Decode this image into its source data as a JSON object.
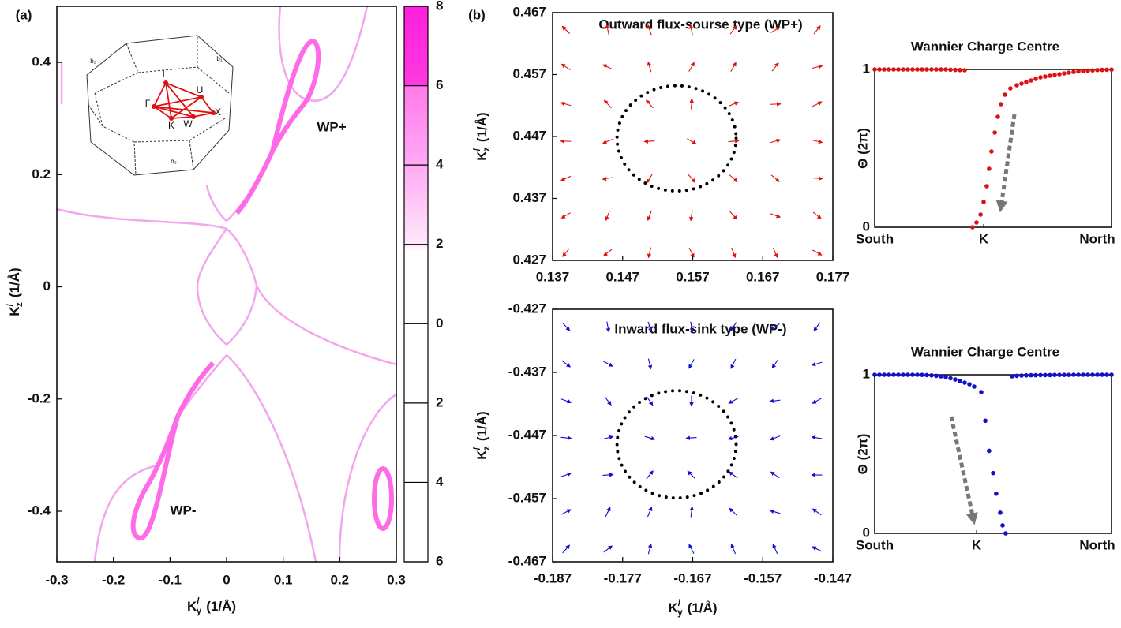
{
  "chart_data": [
    {
      "type": "band-map",
      "panel_label": "(a)",
      "annotations": [
        "WP+",
        "WP-"
      ],
      "xlabel": {
        "base": "K",
        "sup": "/",
        "sub": "y",
        "unit": "(1/Å)"
      },
      "ylabel": {
        "base": "K",
        "sup": "/",
        "sub": "z",
        "unit": "(1/Å)"
      },
      "xlim": [
        -0.3,
        0.3
      ],
      "xticks": [
        -0.3,
        -0.2,
        -0.1,
        0,
        0.1,
        0.2,
        0.3
      ],
      "ylim": [
        -0.49,
        0.5
      ],
      "yticks": [
        -0.4,
        -0.2,
        0,
        0.2,
        0.4
      ],
      "color": "#ff33dd",
      "colorbar": {
        "lim": [
          -6,
          8
        ],
        "ticks": [
          8,
          6,
          4,
          2,
          0,
          {
            "value": -2,
            "label": "2"
          },
          {
            "value": -4,
            "label": "4"
          },
          {
            "value": -6,
            "label": "6"
          }
        ]
      },
      "inset_labels": [
        "L",
        "U",
        "Γ",
        "K",
        "W",
        "X",
        "b₁",
        "b₂",
        "b₃"
      ]
    },
    {
      "type": "vector-field",
      "panel_label": "(b)",
      "title": "Outward flux-sourse type (WP+)",
      "ylabel": {
        "base": "K",
        "sup": "/",
        "sub": "z",
        "unit": "(1/Å)"
      },
      "xlim": [
        0.137,
        0.177
      ],
      "xticks": [
        0.137,
        0.147,
        0.157,
        0.167,
        0.177
      ],
      "ylim": [
        0.427,
        0.467
      ],
      "yticks": [
        0.427,
        0.437,
        0.447,
        0.457,
        0.467
      ],
      "color": "#e01010",
      "circle": {
        "center": [
          0.1547,
          0.4467
        ],
        "radius": 0.0085
      }
    },
    {
      "type": "wcc",
      "title": "Wannier Charge Centre",
      "ylabel": "Θ (2π)",
      "xlim": [
        0,
        1
      ],
      "xticks": [
        {
          "value": 0,
          "label": "South"
        },
        {
          "value": 0.46,
          "label": "K"
        },
        {
          "value": 1,
          "label": "North"
        }
      ],
      "ylim": [
        0,
        1
      ],
      "yticks": [
        0,
        1
      ],
      "color": "#dd1111",
      "x": [
        0,
        0.02,
        0.04,
        0.06,
        0.08,
        0.1,
        0.12,
        0.14,
        0.16,
        0.18,
        0.2,
        0.22,
        0.24,
        0.26,
        0.28,
        0.3,
        0.32,
        0.34,
        0.36,
        0.38,
        0.413,
        0.43,
        0.447,
        0.46,
        0.473,
        0.483,
        0.493,
        0.507,
        0.52,
        0.533,
        0.55,
        0.573,
        0.6,
        0.62,
        0.64,
        0.66,
        0.68,
        0.7,
        0.72,
        0.74,
        0.76,
        0.78,
        0.8,
        0.82,
        0.84,
        0.86,
        0.88,
        0.9,
        0.92,
        0.94,
        0.96,
        0.98,
        1
      ],
      "values": [
        1,
        1,
        1,
        1,
        1,
        1,
        1,
        1,
        1,
        1,
        1,
        1,
        1,
        1,
        1,
        1,
        0.998,
        0.997,
        0.996,
        0.995,
        0,
        0.03,
        0.08,
        0.16,
        0.26,
        0.37,
        0.48,
        0.6,
        0.7,
        0.78,
        0.84,
        0.88,
        0.9,
        0.91,
        0.92,
        0.93,
        0.94,
        0.95,
        0.955,
        0.96,
        0.965,
        0.97,
        0.975,
        0.98,
        0.984,
        0.987,
        0.99,
        0.992,
        0.994,
        0.996,
        0.997,
        0.998,
        0.999
      ]
    },
    {
      "type": "vector-field",
      "title": "Inward flux-sink type (WP-)",
      "xlabel": {
        "base": "K",
        "sup": "/",
        "sub": "y",
        "unit": "(1/Å)"
      },
      "ylabel": {
        "base": "K",
        "sup": "/",
        "sub": "z",
        "unit": "(1/Å)"
      },
      "xlim": [
        -0.187,
        -0.147
      ],
      "xticks": [
        -0.187,
        -0.177,
        -0.167,
        -0.157,
        -0.147
      ],
      "ylim": [
        -0.467,
        -0.427
      ],
      "yticks": [
        -0.467,
        -0.457,
        -0.447,
        -0.437,
        -0.427
      ],
      "color": "#1010d0",
      "circle": {
        "center": [
          -0.1693,
          -0.4484
        ],
        "radius": 0.0085
      }
    },
    {
      "type": "wcc",
      "title": "Wannier Charge Centre",
      "ylabel": "Θ (2π)",
      "xlim": [
        0,
        1
      ],
      "xticks": [
        {
          "value": 0,
          "label": "South"
        },
        {
          "value": 0.43,
          "label": "K"
        },
        {
          "value": 1,
          "label": "North"
        }
      ],
      "ylim": [
        0,
        1
      ],
      "yticks": [
        0,
        1
      ],
      "color": "#1111cc",
      "x": [
        0,
        0.02,
        0.04,
        0.06,
        0.08,
        0.1,
        0.12,
        0.14,
        0.16,
        0.18,
        0.2,
        0.22,
        0.24,
        0.26,
        0.28,
        0.3,
        0.32,
        0.34,
        0.36,
        0.38,
        0.4,
        0.42,
        0.45,
        0.467,
        0.483,
        0.5,
        0.513,
        0.53,
        0.54,
        0.553,
        0.58,
        0.6,
        0.62,
        0.64,
        0.66,
        0.68,
        0.7,
        0.72,
        0.74,
        0.76,
        0.78,
        0.8,
        0.82,
        0.84,
        0.86,
        0.88,
        0.9,
        0.92,
        0.94,
        0.96,
        0.98,
        1
      ],
      "values": [
        1,
        1,
        1,
        1,
        1,
        1,
        1,
        1,
        1,
        1,
        0.999,
        0.998,
        0.996,
        0.993,
        0.99,
        0.985,
        0.978,
        0.97,
        0.96,
        0.95,
        0.94,
        0.925,
        0.89,
        0.71,
        0.52,
        0.38,
        0.25,
        0.13,
        0.05,
        0,
        0.99,
        0.993,
        0.995,
        0.996,
        0.997,
        0.997,
        0.998,
        0.998,
        0.998,
        0.999,
        0.999,
        0.999,
        0.999,
        1,
        1,
        1,
        1,
        1,
        1,
        1,
        1,
        1
      ]
    }
  ]
}
